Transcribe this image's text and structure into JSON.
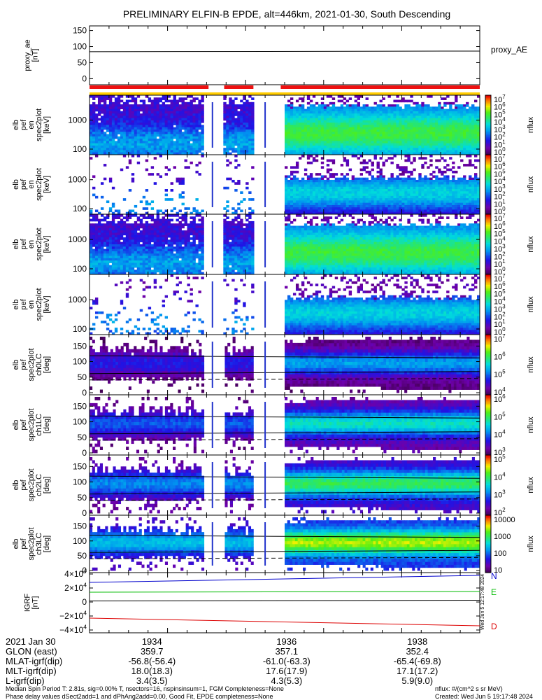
{
  "title": "PRELIMINARY ELFIN-B EPDE, alt=446km, 2021-01-30, South Descending",
  "chart_data": [
    {
      "id": "proxy_ae",
      "type": "line",
      "ylabel": [
        "proxy_ae",
        "[nT]"
      ],
      "yticks": [
        "150",
        "100",
        "50",
        "0"
      ],
      "ylim": [
        -10,
        160
      ],
      "series": [
        {
          "name": "proxy_AE",
          "x": [
            0,
            1
          ],
          "y": [
            84,
            86
          ]
        }
      ],
      "legend": "proxy_AE"
    },
    {
      "id": "coverage_bar",
      "type": "bar",
      "segments_red": [
        [
          0.0,
          0.305
        ],
        [
          0.345,
          0.42
        ],
        [
          0.49,
          1.0
        ]
      ],
      "colors": [
        "#ee1111",
        "#ffcc00"
      ]
    },
    {
      "id": "en_1",
      "type": "heatmap",
      "ylabel": [
        "elb",
        "pef",
        "en",
        "spec2plot",
        "[keV]"
      ],
      "yticks": [
        "1000",
        "100"
      ],
      "colorbar_ticks": [
        "10^7",
        "10^6",
        "10^5",
        "10^4",
        "10^3",
        "10^2",
        "10^1",
        "10^0"
      ],
      "colorbar_label": "nflux",
      "peak_color": "#33ee44"
    },
    {
      "id": "en_2",
      "type": "heatmap",
      "ylabel": [
        "elb",
        "pef",
        "en",
        "spec2plot",
        "[keV]"
      ],
      "yticks": [
        "1000",
        "100"
      ],
      "colorbar_ticks": [
        "10^7",
        "10^6",
        "10^5",
        "10^4",
        "10^3",
        "10^2",
        "10^1",
        "10^0"
      ],
      "colorbar_label": "nflux",
      "peak_color": "#2299ee"
    },
    {
      "id": "en_3",
      "type": "heatmap",
      "ylabel": [
        "elb",
        "pef",
        "en",
        "spec2plot",
        "[keV]"
      ],
      "yticks": [
        "1000",
        "100"
      ],
      "colorbar_ticks": [
        "10^7",
        "10^6",
        "10^5",
        "10^4",
        "10^3",
        "10^2",
        "10^1",
        "10^0"
      ],
      "colorbar_label": "nflux",
      "peak_color": "#33ee44"
    },
    {
      "id": "en_4",
      "type": "heatmap",
      "ylabel": [
        "elb",
        "pef",
        "en",
        "spec2plot",
        "[keV]"
      ],
      "yticks": [
        "1000",
        "100"
      ],
      "colorbar_ticks": [
        "10^7",
        "10^6",
        "10^5",
        "10^4",
        "10^3",
        "10^2",
        "10^1",
        "10^0"
      ],
      "colorbar_label": "nflux",
      "peak_color": "#22aaee"
    },
    {
      "id": "pa_ch0",
      "type": "heatmap",
      "ylabel": [
        "elb",
        "pef",
        "spec2plot",
        "ch0LC",
        "[deg]"
      ],
      "yticks": [
        "150",
        "100",
        "50",
        "0"
      ],
      "colorbar_ticks": [
        "10^7",
        "10^6",
        "10^5",
        "10^4"
      ],
      "colorbar_label": "nflux",
      "peak_color": "#22ccdd"
    },
    {
      "id": "pa_ch1",
      "type": "heatmap",
      "ylabel": [
        "elb",
        "pef",
        "spec2plot",
        "ch1LC",
        "[deg]"
      ],
      "yticks": [
        "150",
        "100",
        "50",
        "0"
      ],
      "colorbar_ticks": [
        "10^6",
        "10^5",
        "10^4",
        "10^3"
      ],
      "colorbar_label": "nflux",
      "peak_color": "#33dd88"
    },
    {
      "id": "pa_ch2",
      "type": "heatmap",
      "ylabel": [
        "elb",
        "pef",
        "spec2plot",
        "ch2LC",
        "[deg]"
      ],
      "yticks": [
        "150",
        "100",
        "50",
        "0"
      ],
      "colorbar_ticks": [
        "10^5",
        "10^4",
        "10^3",
        "10^2"
      ],
      "colorbar_label": "nflux",
      "peak_color": "#66ee33"
    },
    {
      "id": "pa_ch3",
      "type": "heatmap",
      "ylabel": [
        "elb",
        "pef",
        "spec2plot",
        "ch3LC",
        "[deg]"
      ],
      "yticks": [
        "150",
        "100",
        "50",
        "0"
      ],
      "colorbar_ticks": [
        "10000",
        "1000",
        "100",
        "10"
      ],
      "colorbar_label": "nflux",
      "peak_color": "#dddd11"
    },
    {
      "id": "igrf",
      "type": "line",
      "ylabel": [
        "IGRF",
        "[nT]"
      ],
      "yticks": [
        "4×10^4",
        "2×10^4",
        "0",
        "−2×10^4",
        "−4×10^4"
      ],
      "ylim": [
        -40000,
        40000
      ],
      "series": [
        {
          "name": "N",
          "color": "#0000cc",
          "x": [
            0,
            1
          ],
          "y": [
            28000,
            38000
          ]
        },
        {
          "name": "E",
          "color": "#00bb00",
          "x": [
            0,
            1
          ],
          "y": [
            14000,
            15000
          ]
        },
        {
          "name": "D",
          "color": "#dd0000",
          "x": [
            0,
            1
          ],
          "y": [
            -23000,
            -34000
          ]
        },
        {
          "color": "#000000",
          "x": [
            0,
            1
          ],
          "y": [
            1500,
            2500
          ]
        }
      ]
    }
  ],
  "created_vertical": "Wed Jun  5 12:17:48 2024",
  "bottom_axis": {
    "tick_times": [
      "1934",
      "1936",
      "1938"
    ],
    "rows": [
      {
        "label": "2021 Jan 30",
        "values": [
          "",
          "",
          ""
        ]
      },
      {
        "label": "GLON (east)",
        "values": [
          "359.7",
          "357.1",
          "352.4"
        ]
      },
      {
        "label": "MLAT-igrf(dip)",
        "values": [
          "-56.8(-56.4)",
          "-61.0(-63.3)",
          "-65.4(-69.8)"
        ]
      },
      {
        "label": "MLT-igrf(dip)",
        "values": [
          "18.0(18.3)",
          "17.6(17.9)",
          "17.1(17.2)"
        ]
      },
      {
        "label": "L-igrf(dip)",
        "values": [
          "3.4(3.5)",
          "4.3(5.3)",
          "5.9(9.0)"
        ]
      }
    ]
  },
  "footer": {
    "line1_left": "Median Spin Period T: 2.81s, sig=0.00% T, nsectors=16, nspinsinsum=1, FGM Completeness=None",
    "line2_left": "Phase delay values dSect2add=1 and dPhAng2add=0.00, Good Fit, EPDE completeness=None",
    "line1_right": "nflux: #/(cm^2 s sr MeV)",
    "line2_right": "Created: Wed Jun  5 19:17:48 2024"
  }
}
